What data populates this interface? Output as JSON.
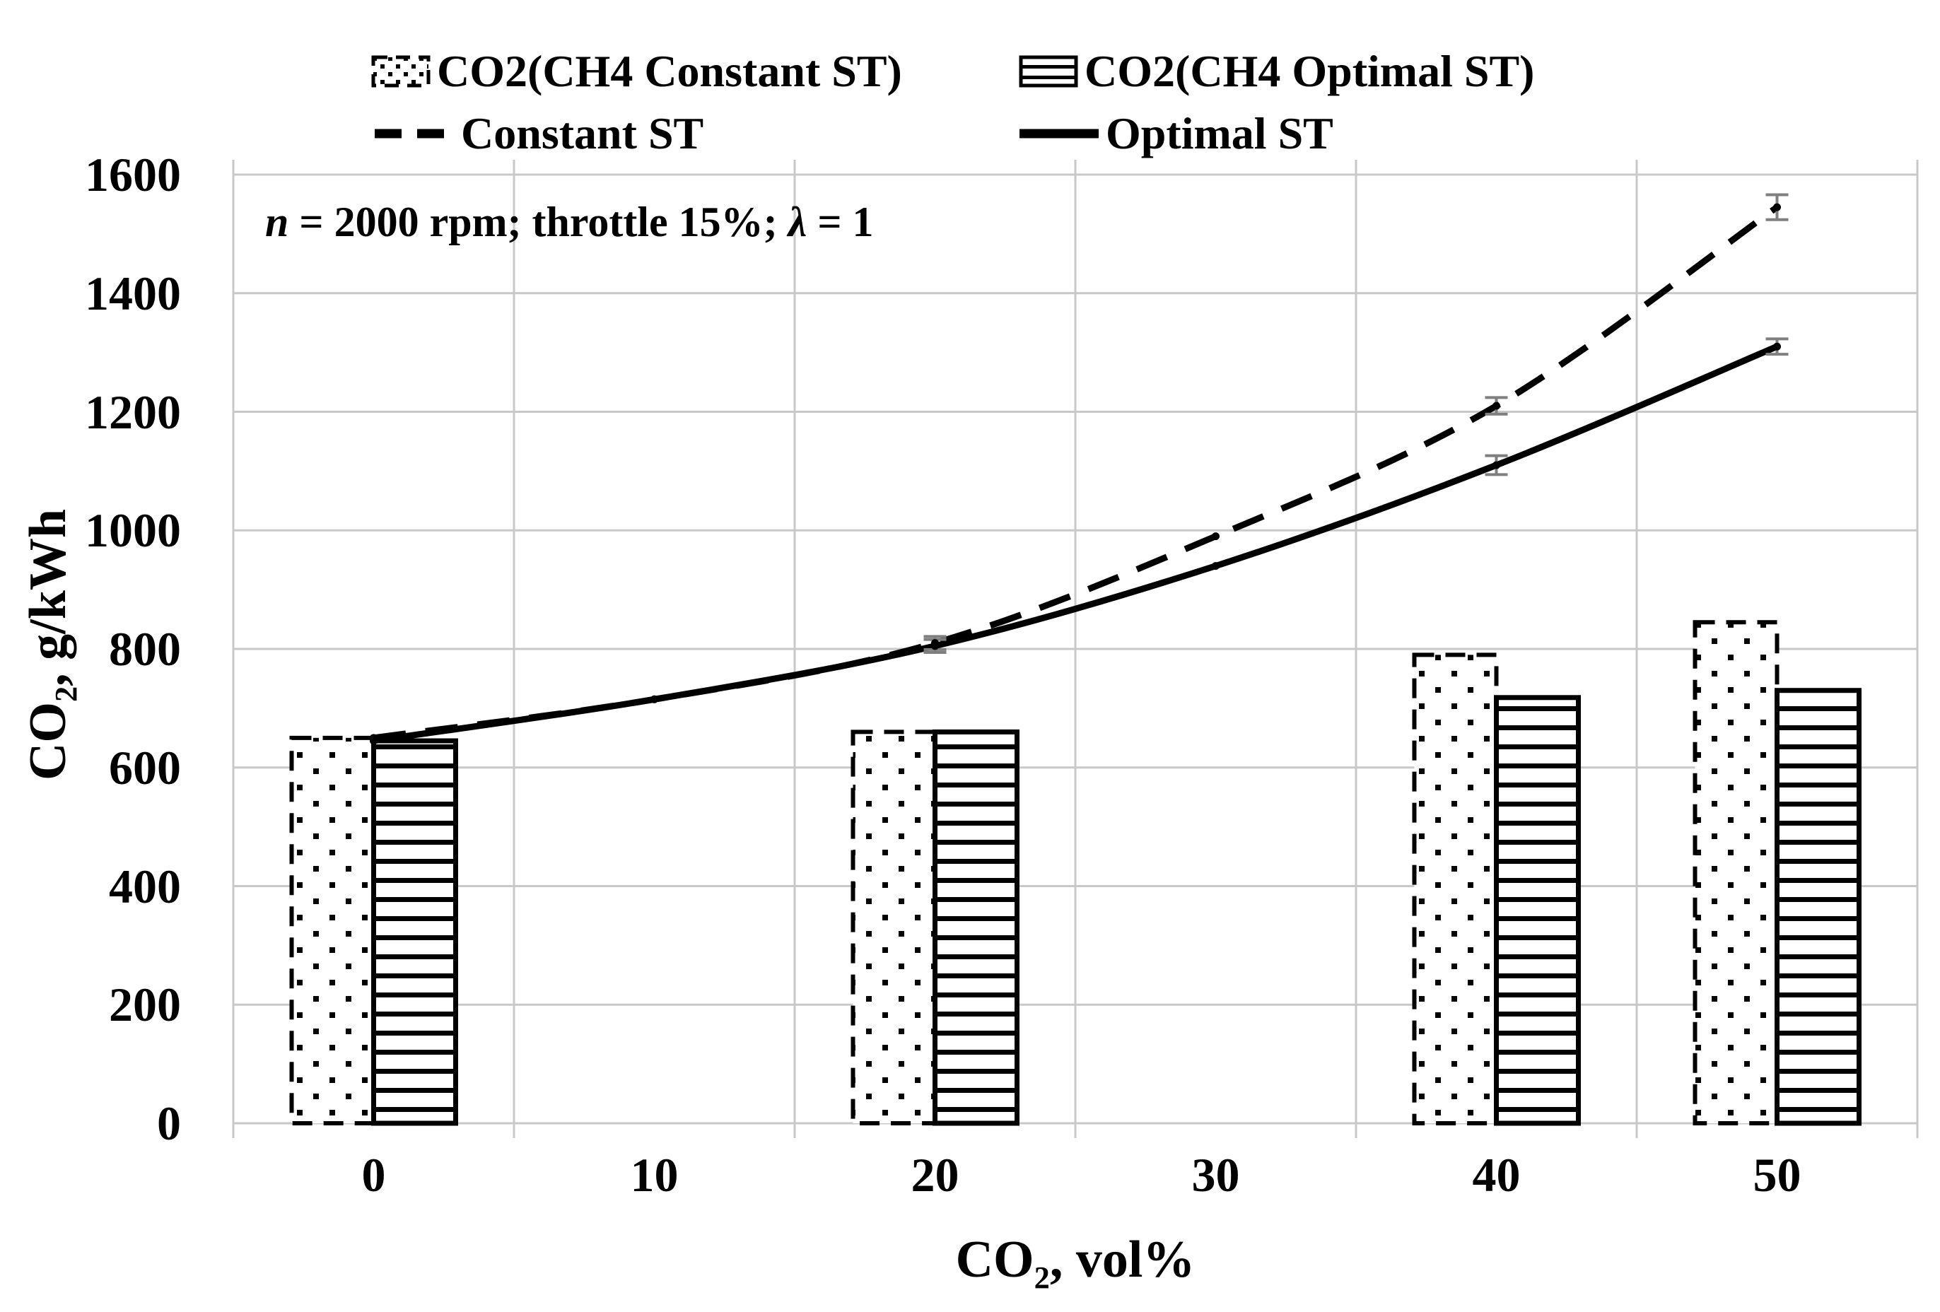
{
  "legend": {
    "bar_items": [
      {
        "label": "CO2(CH4 Constant ST)",
        "pattern": "dotted-fill-dashed-border"
      },
      {
        "label": "CO2(CH4 Optimal ST)",
        "pattern": "horizontal-lines-solid-border"
      }
    ],
    "line_items": [
      {
        "label": "Constant ST",
        "style": "dashed"
      },
      {
        "label": "Optimal ST",
        "style": "solid"
      }
    ]
  },
  "annotation": {
    "var1": "n",
    "seg1": " = 2000 rpm; throttle 15%; ",
    "var2": "λ",
    "seg2": " = 1"
  },
  "axes": {
    "y_title": {
      "pre": "CO",
      "sub": "2",
      "post": ", g/kWh"
    },
    "x_title": {
      "pre": "CO",
      "sub": "2",
      "post": ", vol%"
    }
  },
  "colors": {
    "series": "#000000",
    "gridline": "#c8c8c8",
    "error_bar": "#7f7f7f",
    "background": "#ffffff"
  },
  "chart_data": {
    "type": "combo-bar-line",
    "title": "",
    "annotation": "n = 2000 rpm; throttle 15%; λ = 1",
    "xlabel": "CO2, vol%",
    "ylabel": "CO2, g/kWh",
    "categories": [
      0,
      10,
      20,
      30,
      40,
      50
    ],
    "ylim": [
      0,
      1600
    ],
    "ytick_step": 200,
    "grid": true,
    "legend_position": "top",
    "bar_series": [
      {
        "name": "CO2(CH4 Constant ST)",
        "fill_pattern": "dots",
        "border": "dashed",
        "values": [
          650,
          null,
          660,
          null,
          790,
          845
        ]
      },
      {
        "name": "CO2(CH4 Optimal ST)",
        "fill_pattern": "horizontal-lines",
        "border": "solid",
        "values": [
          645,
          null,
          660,
          null,
          718,
          730
        ]
      }
    ],
    "line_series": [
      {
        "name": "Constant ST",
        "style": "dashed",
        "values": [
          650,
          715,
          810,
          990,
          1210,
          1545
        ],
        "error_bars": [
          null,
          null,
          11,
          null,
          14,
          21
        ]
      },
      {
        "name": "Optimal ST",
        "style": "solid",
        "values": [
          645,
          715,
          805,
          940,
          1110,
          1310
        ],
        "error_bars": [
          null,
          null,
          11,
          null,
          16,
          13
        ]
      }
    ]
  }
}
